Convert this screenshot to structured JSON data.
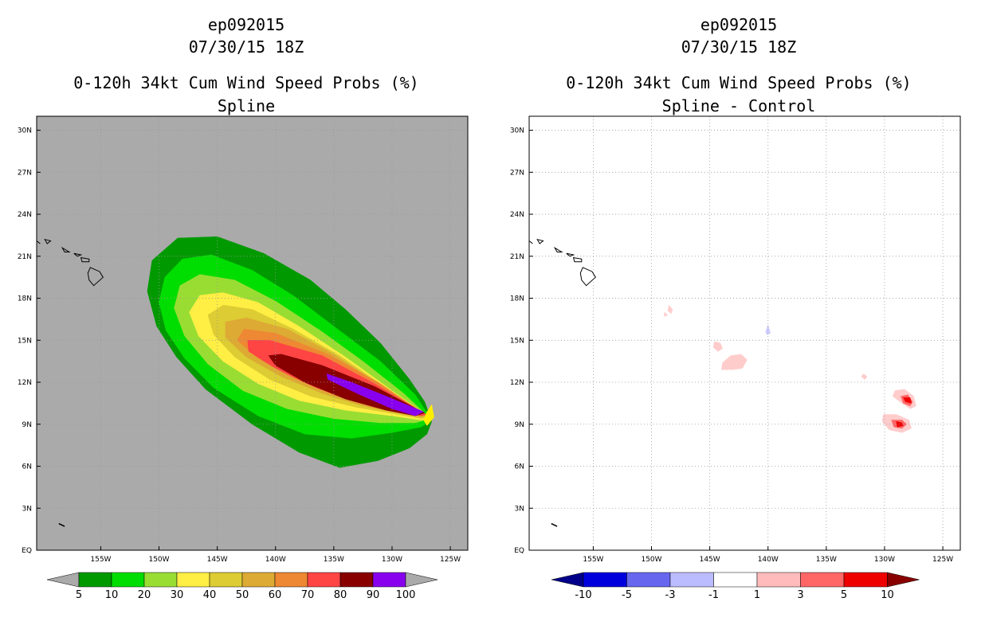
{
  "chart_data": [
    {
      "type": "heatmap",
      "storm": "ep092015",
      "datetime": "07/30/15 18Z",
      "title": "0-120h 34kt Cum Wind Speed Probs (%)",
      "subtitle": "Spline",
      "background": "#aaaaaa",
      "grid": true,
      "xlim": [
        -160.5,
        -123.5
      ],
      "ylim": [
        0,
        31
      ],
      "xticks": [
        -155,
        -150,
        -145,
        -140,
        -135,
        -130,
        -125
      ],
      "xtick_labels": [
        "155W",
        "150W",
        "145W",
        "140W",
        "135W",
        "130W",
        "125W"
      ],
      "yticks": [
        0,
        3,
        6,
        9,
        12,
        15,
        18,
        21,
        24,
        27,
        30
      ],
      "ytick_labels": [
        "EQ",
        "3N",
        "6N",
        "9N",
        "12N",
        "15N",
        "18N",
        "21N",
        "24N",
        "27N",
        "30N"
      ],
      "colorbar": {
        "labels": [
          "5",
          "10",
          "20",
          "30",
          "40",
          "50",
          "60",
          "70",
          "80",
          "90",
          "100"
        ],
        "colors": [
          "#009900",
          "#00dd00",
          "#99dd33",
          "#ffee44",
          "#ddcc33",
          "#ddaa33",
          "#ee8833",
          "#ff4444",
          "#880000",
          "#8800ee"
        ],
        "extend_low_color": "#aaaaaa",
        "extend_high_color": "#aaaaaa"
      },
      "contours": [
        {
          "level": 5,
          "color": "#009900",
          "ring": [
            [
              -126.6,
              9.2
            ],
            [
              -127.2,
              10.6
            ],
            [
              -128.5,
              12.2
            ],
            [
              -131,
              14.8
            ],
            [
              -134,
              17.2
            ],
            [
              -137,
              19.3
            ],
            [
              -141,
              21.2
            ],
            [
              -145,
              22.4
            ],
            [
              -148.4,
              22.3
            ],
            [
              -150.6,
              20.7
            ],
            [
              -151,
              18.5
            ],
            [
              -150.2,
              16
            ],
            [
              -148.5,
              13.8
            ],
            [
              -146,
              11.5
            ],
            [
              -142,
              9
            ],
            [
              -138,
              7
            ],
            [
              -134.5,
              5.9
            ],
            [
              -131.2,
              6.4
            ],
            [
              -128.5,
              7.3
            ],
            [
              -127,
              8.3
            ]
          ]
        },
        {
          "level": 10,
          "color": "#00dd00",
          "ring": [
            [
              -126.6,
              9.3
            ],
            [
              -128,
              11.1
            ],
            [
              -131,
              13.5
            ],
            [
              -135,
              16
            ],
            [
              -138.5,
              18.2
            ],
            [
              -142,
              20
            ],
            [
              -145.5,
              21.1
            ],
            [
              -148,
              20.8
            ],
            [
              -149.5,
              19.5
            ],
            [
              -150,
              17.7
            ],
            [
              -149.4,
              15.7
            ],
            [
              -147.8,
              13.7
            ],
            [
              -145.3,
              11.6
            ],
            [
              -141.5,
              9.6
            ],
            [
              -137.5,
              8.3
            ],
            [
              -133.5,
              8
            ],
            [
              -130,
              8.4
            ],
            [
              -127.5,
              8.8
            ]
          ]
        },
        {
          "level": 20,
          "color": "#99dd33",
          "ring": [
            [
              -126.7,
              9.4
            ],
            [
              -129,
              11.2
            ],
            [
              -132.5,
              13.5
            ],
            [
              -136,
              15.6
            ],
            [
              -140,
              17.8
            ],
            [
              -143.5,
              19.3
            ],
            [
              -146.5,
              19.7
            ],
            [
              -148.2,
              18.9
            ],
            [
              -148.7,
              17.3
            ],
            [
              -147.8,
              15.3
            ],
            [
              -145.8,
              13.3
            ],
            [
              -142.8,
              11.4
            ],
            [
              -139,
              10.1
            ],
            [
              -135,
              9.4
            ],
            [
              -131,
              9.1
            ],
            [
              -128,
              9.1
            ]
          ]
        },
        {
          "level": 30,
          "color": "#ffee44",
          "ring": [
            [
              -126.8,
              9.5
            ],
            [
              -130,
              11.4
            ],
            [
              -134,
              13.8
            ],
            [
              -138,
              16
            ],
            [
              -141.5,
              17.7
            ],
            [
              -144.5,
              18.4
            ],
            [
              -146.5,
              18.2
            ],
            [
              -147.4,
              17
            ],
            [
              -146.6,
              15.3
            ],
            [
              -144.5,
              13.5
            ],
            [
              -141.5,
              11.9
            ],
            [
              -138,
              10.7
            ],
            [
              -134,
              10
            ],
            [
              -130,
              9.6
            ],
            [
              -127.5,
              9.3
            ]
          ]
        },
        {
          "level": 40,
          "color": "#ddcc33",
          "ring": [
            [
              -126.9,
              9.5
            ],
            [
              -130.5,
              11.6
            ],
            [
              -134.5,
              13.9
            ],
            [
              -138.5,
              15.8
            ],
            [
              -142,
              17.2
            ],
            [
              -144.5,
              17.5
            ],
            [
              -145.8,
              16.8
            ],
            [
              -145.3,
              15.4
            ],
            [
              -143.5,
              13.8
            ],
            [
              -140.5,
              12.2
            ],
            [
              -137,
              11
            ],
            [
              -133,
              10.2
            ],
            [
              -129.5,
              9.7
            ],
            [
              -127.5,
              9.4
            ]
          ]
        },
        {
          "level": 50,
          "color": "#ddaa33",
          "ring": [
            [
              -127,
              9.6
            ],
            [
              -131,
              11.8
            ],
            [
              -135,
              14
            ],
            [
              -139,
              15.8
            ],
            [
              -142.5,
              16.6
            ],
            [
              -144.3,
              16.3
            ],
            [
              -144.3,
              15.2
            ],
            [
              -142.5,
              13.8
            ],
            [
              -139.5,
              12.4
            ],
            [
              -136,
              11.2
            ],
            [
              -132.5,
              10.3
            ],
            [
              -129.5,
              9.8
            ],
            [
              -127.5,
              9.5
            ]
          ]
        },
        {
          "level": 60,
          "color": "#ee8833",
          "ring": [
            [
              -127,
              9.6
            ],
            [
              -131,
              11.9
            ],
            [
              -135.5,
              14
            ],
            [
              -140,
              15.5
            ],
            [
              -142.7,
              15.8
            ],
            [
              -143.3,
              15
            ],
            [
              -141.5,
              13.7
            ],
            [
              -138.5,
              12.3
            ],
            [
              -135,
              11.1
            ],
            [
              -131.5,
              10.2
            ],
            [
              -128.5,
              9.7
            ]
          ]
        },
        {
          "level": 70,
          "color": "#ff4444",
          "ring": [
            [
              -127.1,
              9.7
            ],
            [
              -131.5,
              11.9
            ],
            [
              -136,
              13.9
            ],
            [
              -140.5,
              15
            ],
            [
              -142.4,
              15
            ],
            [
              -142.3,
              14.2
            ],
            [
              -140,
              13
            ],
            [
              -136.5,
              11.6
            ],
            [
              -133,
              10.6
            ],
            [
              -129.5,
              9.9
            ],
            [
              -127.5,
              9.6
            ]
          ]
        },
        {
          "level": 80,
          "color": "#880000",
          "ring": [
            [
              -127.2,
              9.8
            ],
            [
              -131.5,
              11.7
            ],
            [
              -136,
              13.2
            ],
            [
              -139.5,
              14
            ],
            [
              -140.6,
              13.9
            ],
            [
              -140,
              13.2
            ],
            [
              -137.5,
              12
            ],
            [
              -134,
              10.8
            ],
            [
              -130.5,
              10
            ],
            [
              -128,
              9.6
            ]
          ]
        },
        {
          "level": 90,
          "color": "#8800ee",
          "ring": [
            [
              -127.3,
              9.9
            ],
            [
              -130.5,
              11
            ],
            [
              -133.5,
              12
            ],
            [
              -135.6,
              12.6
            ],
            [
              -135.5,
              12.2
            ],
            [
              -133,
              11.2
            ],
            [
              -130,
              10.1
            ],
            [
              -128,
              9.6
            ]
          ]
        },
        {
          "level": 99,
          "color": "#ffee00",
          "ring": [
            [
              -126.6,
              10.4
            ],
            [
              -126.4,
              9.5
            ],
            [
              -127,
              8.9
            ],
            [
              -127.3,
              9.3
            ],
            [
              -127,
              9.9
            ]
          ]
        }
      ]
    },
    {
      "type": "heatmap",
      "storm": "ep092015",
      "datetime": "07/30/15 18Z",
      "title": "0-120h 34kt Cum Wind Speed Probs (%)",
      "subtitle": "Spline - Control",
      "background": "#ffffff",
      "grid": true,
      "xlim": [
        -160.5,
        -123.5
      ],
      "ylim": [
        0,
        31
      ],
      "xticks": [
        -155,
        -150,
        -145,
        -140,
        -135,
        -130,
        -125
      ],
      "xtick_labels": [
        "155W",
        "150W",
        "145W",
        "140W",
        "135W",
        "130W",
        "125W"
      ],
      "yticks": [
        0,
        3,
        6,
        9,
        12,
        15,
        18,
        21,
        24,
        27,
        30
      ],
      "ytick_labels": [
        "EQ",
        "3N",
        "6N",
        "9N",
        "12N",
        "15N",
        "18N",
        "21N",
        "24N",
        "27N",
        "30N"
      ],
      "colorbar": {
        "labels": [
          "-10",
          "-5",
          "-3",
          "-1",
          "1",
          "3",
          "5",
          "10"
        ],
        "colors": [
          "#0000dd",
          "#6666ee",
          "#bbbbff",
          "#ffffff",
          "#ffbbbb",
          "#ff6666",
          "#ee0000"
        ],
        "extend_low_color": "#000088",
        "extend_high_color": "#880000"
      },
      "contours": [
        {
          "level": 1,
          "color": "#ffcccc",
          "ring": [
            [
              -148.5,
              17.5
            ],
            [
              -148.2,
              17.2
            ],
            [
              -148.3,
              16.9
            ],
            [
              -148.6,
              17.1
            ]
          ]
        },
        {
          "level": 1,
          "color": "#ffcccc",
          "ring": [
            [
              -148.9,
              17
            ],
            [
              -148.6,
              16.8
            ],
            [
              -148.9,
              16.7
            ]
          ]
        },
        {
          "level": 1,
          "color": "#ffcccc",
          "ring": [
            [
              -144.6,
              14.9
            ],
            [
              -144.1,
              14.8
            ],
            [
              -143.9,
              14.4
            ],
            [
              -144.3,
              14.2
            ],
            [
              -144.7,
              14.5
            ]
          ]
        },
        {
          "level": 1,
          "color": "#ffcccc",
          "ring": [
            [
              -143.2,
              13.9
            ],
            [
              -142.3,
              14
            ],
            [
              -141.8,
              13.6
            ],
            [
              -142.2,
              13
            ],
            [
              -143,
              12.9
            ],
            [
              -144,
              12.9
            ],
            [
              -143.9,
              13.4
            ]
          ]
        },
        {
          "level": -1,
          "color": "#ccccff",
          "ring": [
            [
              -140,
              16.1
            ],
            [
              -139.8,
              15.5
            ],
            [
              -140.1,
              15.4
            ],
            [
              -140.2,
              15.6
            ]
          ]
        },
        {
          "level": 1,
          "color": "#ffcccc",
          "ring": [
            [
              -131.8,
              12.6
            ],
            [
              -131.5,
              12.4
            ],
            [
              -131.7,
              12.2
            ],
            [
              -132,
              12.4
            ]
          ]
        },
        {
          "level": 1,
          "color": "#ffcccc",
          "ring": [
            [
              -129.1,
              11.4
            ],
            [
              -128.3,
              11.5
            ],
            [
              -127.5,
              11
            ],
            [
              -127.3,
              10.3
            ],
            [
              -127.8,
              10.1
            ],
            [
              -128.5,
              10.5
            ],
            [
              -129.3,
              11
            ]
          ]
        },
        {
          "level": 3,
          "color": "#ff6666",
          "ring": [
            [
              -128.6,
              11
            ],
            [
              -128,
              11.1
            ],
            [
              -127.6,
              10.6
            ],
            [
              -127.8,
              10.3
            ],
            [
              -128.4,
              10.5
            ]
          ]
        },
        {
          "level": 5,
          "color": "#ee0000",
          "ring": [
            [
              -128.4,
              10.9
            ],
            [
              -127.8,
              10.9
            ],
            [
              -127.7,
              10.5
            ],
            [
              -128.2,
              10.6
            ]
          ]
        },
        {
          "level": 1,
          "color": "#ffcccc",
          "ring": [
            [
              -130.1,
              9.7
            ],
            [
              -129,
              9.7
            ],
            [
              -127.9,
              9.3
            ],
            [
              -127.7,
              8.7
            ],
            [
              -128.5,
              8.4
            ],
            [
              -129.6,
              8.6
            ],
            [
              -130.2,
              9.2
            ]
          ]
        },
        {
          "level": 3,
          "color": "#ff6666",
          "ring": [
            [
              -129.4,
              9.3
            ],
            [
              -128.5,
              9.3
            ],
            [
              -128.1,
              9
            ],
            [
              -128.5,
              8.7
            ],
            [
              -129.2,
              8.8
            ]
          ]
        },
        {
          "level": 5,
          "color": "#ee0000",
          "ring": [
            [
              -129,
              9.2
            ],
            [
              -128.5,
              9.1
            ],
            [
              -128.4,
              8.9
            ],
            [
              -128.9,
              8.8
            ]
          ]
        }
      ]
    }
  ]
}
